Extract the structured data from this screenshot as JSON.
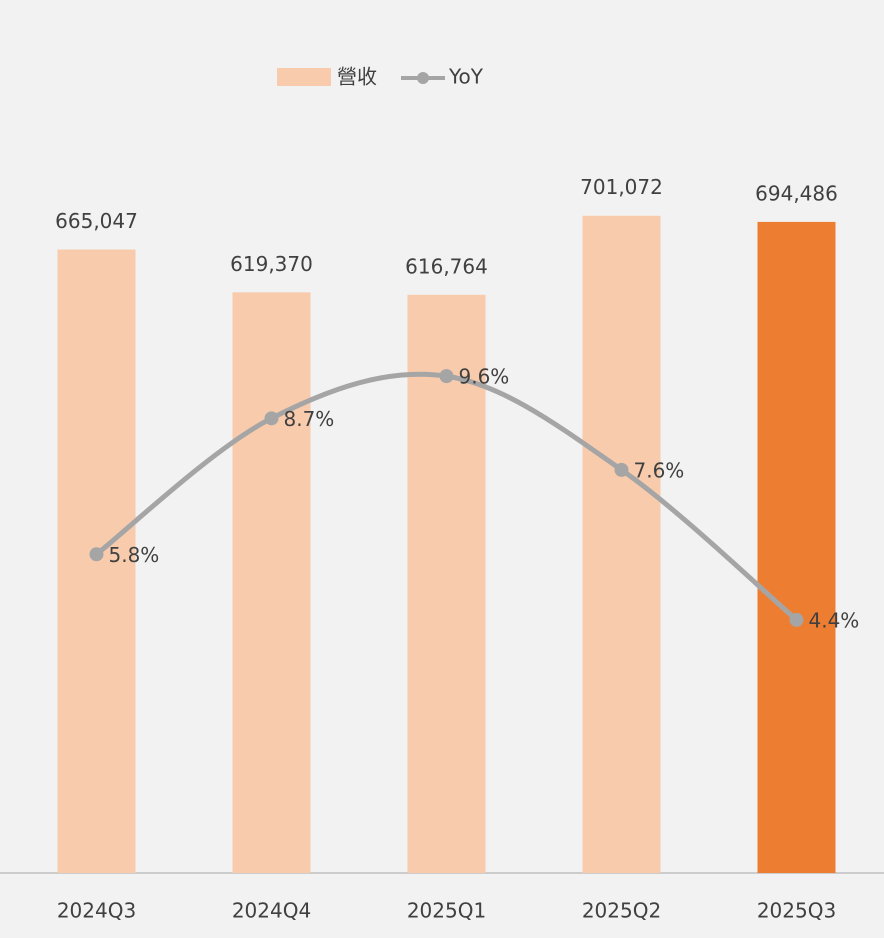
{
  "chart_data": {
    "type": "bar_line",
    "categories": [
      "2024Q3",
      "2024Q4",
      "2025Q1",
      "2025Q2",
      "2025Q3"
    ],
    "series": [
      {
        "name": "營收",
        "type": "bar",
        "color": "#f8cbad",
        "colors": [
          "#f8cbad",
          "#f8cbad",
          "#f8cbad",
          "#f8cbad",
          "#ed7d31"
        ],
        "values": [
          665047,
          619370,
          616764,
          701072,
          694486
        ],
        "value_labels": [
          "665,047",
          "619,370",
          "616,764",
          "701,072",
          "694,486"
        ]
      },
      {
        "name": "YoY",
        "type": "line",
        "axis": "y2",
        "color": "#a5a5a5",
        "smooth": true,
        "values": [
          5.8,
          8.7,
          9.6,
          7.6,
          4.4
        ],
        "value_labels": [
          "5.8%",
          "8.7%",
          "9.6%",
          "7.6%",
          "4.4%"
        ]
      }
    ],
    "ylim": [
      0,
      800000
    ],
    "y2lim": [
      -1,
      15
    ],
    "legend": "top"
  }
}
